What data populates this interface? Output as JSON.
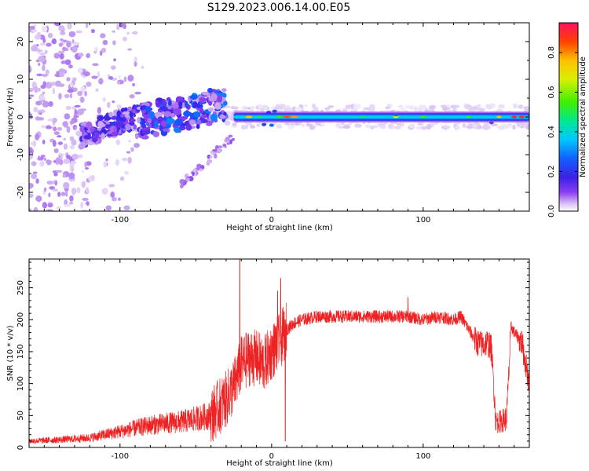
{
  "page_title": "S129.2023.006.14.00.E05",
  "chart_data": [
    {
      "type": "heatmap",
      "title": "",
      "xlabel": "Height of straight line (km)",
      "ylabel": "Frequency (Hz)",
      "xlim": [
        -160,
        170
      ],
      "ylim": [
        -25,
        25
      ],
      "x_ticks": [
        -100,
        0,
        100
      ],
      "y_ticks": [
        -20,
        -10,
        0,
        10,
        20
      ],
      "grid": false,
      "colorbar": {
        "label": "Normalized spectral amplitude",
        "range": [
          0,
          0.95
        ],
        "ticks": [
          "0.0",
          "0.2",
          "0.4",
          "0.6",
          "0.8"
        ],
        "colormap": [
          "#ffffff",
          "#c9a8f0",
          "#8c3ef0",
          "#3b20e8",
          "#1060ff",
          "#00c8ff",
          "#00e890",
          "#40f000",
          "#d8f000",
          "#ffc000",
          "#ff4000",
          "#ff1060"
        ]
      },
      "features": [
        {
          "name": "carrier line",
          "x_range": [
            -25,
            170
          ],
          "frequency_hz": 0,
          "amplitude": 0.45
        },
        {
          "name": "positive drift",
          "x_range": [
            -90,
            -30
          ],
          "frequency_hz_range": [
            0,
            5
          ],
          "amplitude": 0.3
        },
        {
          "name": "negative drift",
          "x_range": [
            -125,
            -90
          ],
          "frequency_hz_range": [
            -6,
            0
          ],
          "amplitude": 0.25
        },
        {
          "name": "falling branch",
          "x_range": [
            -60,
            -25
          ],
          "frequency_hz_range": [
            -18,
            -5
          ],
          "amplitude": 0.15
        },
        {
          "name": "noise region",
          "x_range": [
            -160,
            -110
          ],
          "frequency_hz_range": [
            -25,
            25
          ],
          "amplitude": 0.1
        }
      ]
    },
    {
      "type": "line",
      "title": "",
      "xlabel": "Height of straight line (km)",
      "ylabel": "SNR (10 * v/v)",
      "xlim": [
        -160,
        170
      ],
      "ylim": [
        0,
        295
      ],
      "x_ticks": [
        -100,
        0,
        100
      ],
      "y_ticks": [
        0,
        50,
        100,
        150,
        200,
        250
      ],
      "grid": false,
      "series": [
        {
          "color": "#ee2222",
          "x": [
            -160,
            -140,
            -120,
            -100,
            -80,
            -60,
            -40,
            -30,
            -25,
            -20,
            -15,
            -10,
            -5,
            0,
            5,
            10,
            15,
            20,
            30,
            40,
            50,
            60,
            70,
            80,
            90,
            100,
            110,
            120,
            125,
            130,
            135,
            140,
            142,
            145,
            148,
            150,
            155,
            158,
            160,
            165,
            170
          ],
          "values": [
            10,
            12,
            15,
            25,
            35,
            40,
            50,
            75,
            95,
            130,
            140,
            140,
            130,
            150,
            165,
            185,
            195,
            200,
            205,
            205,
            205,
            205,
            205,
            205,
            205,
            200,
            205,
            200,
            205,
            185,
            165,
            160,
            165,
            155,
            40,
            40,
            45,
            190,
            180,
            165,
            100
          ]
        }
      ],
      "spikes": [
        {
          "x": -21,
          "value": 295
        },
        {
          "x": 6,
          "value": 265
        },
        {
          "x": 4,
          "value": 245
        },
        {
          "x": 9,
          "value": 10
        },
        {
          "x": 90,
          "value": 235
        }
      ]
    }
  ]
}
